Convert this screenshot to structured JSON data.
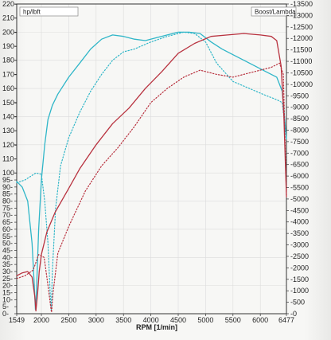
{
  "chart_data": {
    "type": "line",
    "xlabel": "RPM  [1/min]",
    "left_axis_title": "hp/lbft",
    "right_axis_title": "Boost/Lambda",
    "x_ticks": [
      1549,
      2000,
      2500,
      3000,
      3500,
      4000,
      4500,
      5000,
      5500,
      6000,
      6477
    ],
    "xlim": [
      1549,
      6477
    ],
    "left_ticks": [
      0,
      5,
      10,
      15,
      20,
      25,
      30,
      35,
      40,
      45,
      50,
      55,
      60,
      65,
      70,
      75,
      80,
      85,
      90,
      95,
      100,
      110,
      120,
      130,
      140,
      150,
      160,
      170,
      180,
      190,
      200,
      210,
      220
    ],
    "ylim_left": [
      0,
      220
    ],
    "right_ticks": [
      0,
      500,
      1000,
      1500,
      2000,
      2500,
      3000,
      3500,
      4000,
      4500,
      5000,
      5500,
      6000,
      6500,
      7000,
      7500,
      8000,
      8500,
      9000,
      9500,
      10000,
      10500,
      11000,
      11500,
      12000,
      12500,
      13000,
      13500
    ],
    "ylim_right": [
      0,
      13500
    ],
    "colors": {
      "cyan": "#2fb6c8",
      "red": "#b8323f",
      "frame": "#333333",
      "grid": "#dcdcdc"
    },
    "series": [
      {
        "color": "cyan",
        "style": "solid",
        "x": [
          1549,
          1650,
          1750,
          1830,
          1870,
          1890,
          1910,
          1950,
          2000,
          2060,
          2120,
          2200,
          2300,
          2500,
          2700,
          2900,
          3100,
          3300,
          3500,
          3700,
          3900,
          4100,
          4300,
          4500,
          4700,
          4900,
          5100,
          5300,
          5500,
          5700,
          5900,
          6100,
          6300,
          6400,
          6477
        ],
        "y": [
          94,
          90,
          80,
          50,
          20,
          3,
          15,
          60,
          95,
          120,
          138,
          148,
          156,
          168,
          178,
          188,
          195,
          198,
          197,
          195,
          194,
          196,
          198,
          200,
          200,
          199,
          193,
          188,
          184,
          180,
          176,
          172,
          168,
          158,
          124
        ]
      },
      {
        "color": "cyan",
        "style": "dotted",
        "x": [
          1549,
          1700,
          1900,
          2000,
          2060,
          2120,
          2160,
          2180,
          2200,
          2260,
          2350,
          2500,
          2700,
          2900,
          3100,
          3300,
          3500,
          3700,
          4000,
          4300,
          4600,
          4800,
          5000,
          5200,
          5500,
          5800,
          6100,
          6300,
          6400,
          6477
        ],
        "y": [
          93,
          95,
          100,
          99,
          80,
          50,
          15,
          2,
          30,
          75,
          105,
          125,
          143,
          158,
          170,
          180,
          186,
          188,
          193,
          197,
          200,
          199,
          193,
          178,
          165,
          160,
          155,
          152,
          150,
          124
        ]
      },
      {
        "color": "red",
        "style": "solid",
        "x": [
          1549,
          1650,
          1750,
          1830,
          1880,
          1900,
          1930,
          1960,
          2000,
          2100,
          2250,
          2500,
          2700,
          3000,
          3300,
          3600,
          3900,
          4200,
          4500,
          4800,
          5100,
          5400,
          5700,
          6000,
          6200,
          6300,
          6380,
          6430,
          6477
        ],
        "y": [
          27,
          29,
          30,
          26,
          12,
          2,
          14,
          30,
          42,
          58,
          72,
          89,
          103,
          120,
          135,
          146,
          160,
          172,
          185,
          192,
          197,
          198,
          199,
          198,
          197,
          194,
          176,
          140,
          83
        ]
      },
      {
        "color": "red",
        "style": "dotted",
        "x": [
          1549,
          1700,
          1850,
          1950,
          2050,
          2120,
          2170,
          2185,
          2210,
          2300,
          2500,
          2800,
          3100,
          3400,
          3700,
          4000,
          4300,
          4600,
          4900,
          5200,
          5500,
          5800,
          6000,
          6200,
          6350,
          6420,
          6477
        ],
        "y": [
          25,
          27,
          31,
          42,
          40,
          20,
          5,
          1,
          14,
          43,
          62,
          87,
          105,
          118,
          133,
          150,
          160,
          168,
          173,
          170,
          168,
          171,
          173,
          175,
          178,
          170,
          84
        ]
      }
    ]
  }
}
